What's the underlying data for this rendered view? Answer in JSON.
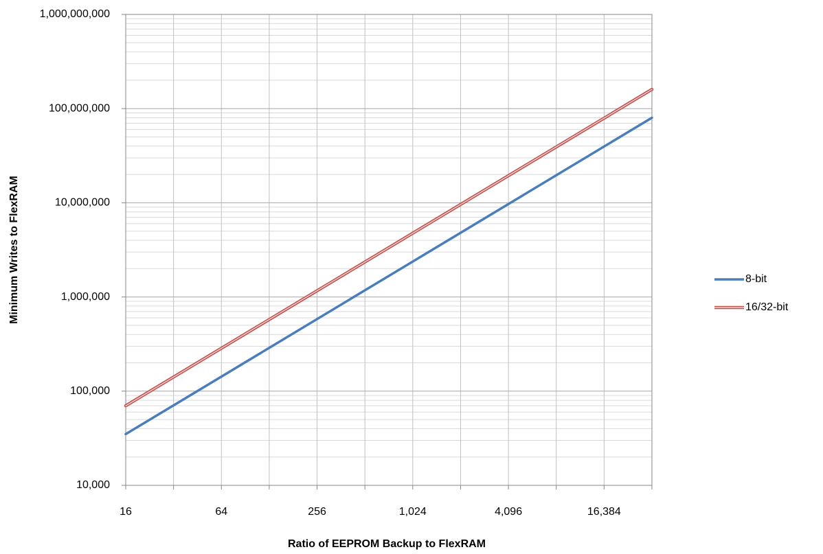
{
  "chart_data": {
    "type": "line",
    "xlabel": "Ratio of EEPROM Backup to FlexRAM",
    "ylabel": "Minimum Writes to FlexRAM",
    "x_scale": "log2",
    "y_scale": "log10",
    "xlim": [
      16,
      32768
    ],
    "ylim": [
      10000,
      1000000000
    ],
    "x_ticks": [
      16,
      64,
      256,
      1024,
      4096,
      16384
    ],
    "x_tick_labels": [
      "16",
      "64",
      "256",
      "1,024",
      "4,096",
      "16,384"
    ],
    "y_ticks": [
      10000,
      100000,
      1000000,
      10000000,
      100000000,
      1000000000
    ],
    "y_tick_labels": [
      "10,000",
      "100,000",
      "1,000,000",
      "10,000,000",
      "100,000,000",
      "1,000,000,000"
    ],
    "grid": true,
    "legend_position": "right",
    "series": [
      {
        "name": "8-bit",
        "color": "#4a7ebb",
        "x": [
          16,
          32768
        ],
        "y": [
          35000,
          80000000
        ]
      },
      {
        "name": "16/32-bit",
        "color": "#c0504d",
        "x": [
          16,
          32768
        ],
        "y": [
          70000,
          160000000
        ]
      }
    ]
  }
}
